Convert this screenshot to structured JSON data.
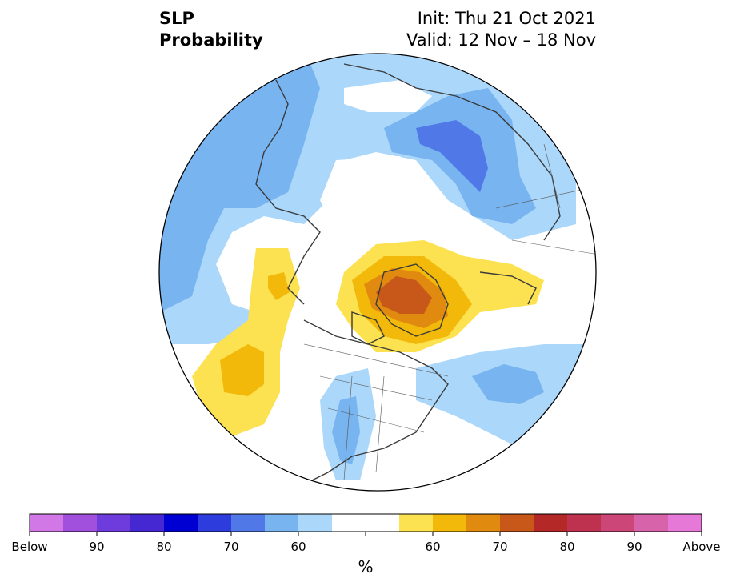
{
  "header": {
    "variable_line1": "SLP",
    "variable_line2": "Probability",
    "init": "Init: Thu 21 Oct 2021",
    "valid": "Valid: 12 Nov – 18 Nov"
  },
  "map": {
    "projection": "north polar stereographic",
    "land_outline_color": "#3a3a3a",
    "ocean_background": "#ffffff"
  },
  "colorbar": {
    "units": "%",
    "below_colors": [
      "#d278e6",
      "#a050dc",
      "#6e3cdc",
      "#4628d2",
      "#0000d2",
      "#2d3cdc",
      "#5078e6",
      "#78b4f0",
      "#aad7fa"
    ],
    "neutral_color": "#ffffff",
    "above_colors": [
      "#fce150",
      "#f2b90a",
      "#e08a10",
      "#c8581a",
      "#b42828",
      "#be3250",
      "#cd4678",
      "#d764aa",
      "#e678d7"
    ],
    "tick_labels": [
      {
        "slot": 0,
        "text": "Below"
      },
      {
        "slot": 2,
        "text": "90"
      },
      {
        "slot": 4,
        "text": "80"
      },
      {
        "slot": 6,
        "text": "70"
      },
      {
        "slot": 8,
        "text": "60"
      },
      {
        "slot": 12,
        "text": "60"
      },
      {
        "slot": 14,
        "text": "70"
      },
      {
        "slot": 16,
        "text": "80"
      },
      {
        "slot": 18,
        "text": "90"
      },
      {
        "slot": 20,
        "text": "Above"
      }
    ]
  }
}
